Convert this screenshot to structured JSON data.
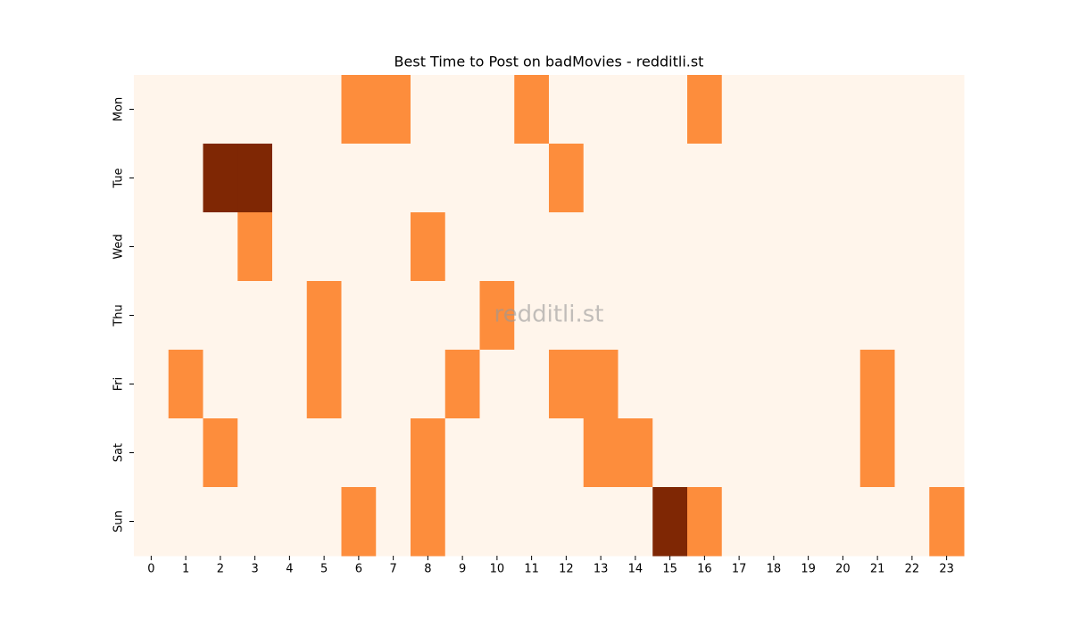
{
  "chart_data": {
    "type": "heatmap",
    "title": "Best Time to Post on badMovies - redditli.st",
    "watermark": "redditli.st",
    "columns": [
      "0",
      "1",
      "2",
      "3",
      "4",
      "5",
      "6",
      "7",
      "8",
      "9",
      "10",
      "11",
      "12",
      "13",
      "14",
      "15",
      "16",
      "17",
      "18",
      "19",
      "20",
      "21",
      "22",
      "23"
    ],
    "rows": [
      "Mon",
      "Tue",
      "Wed",
      "Thu",
      "Fri",
      "Sat",
      "Sun"
    ],
    "values": [
      [
        0,
        0,
        0,
        0,
        0,
        0,
        1,
        1,
        0,
        0,
        0,
        1,
        0,
        0,
        0,
        0,
        1,
        0,
        0,
        0,
        0,
        0,
        0,
        0
      ],
      [
        0,
        0,
        2,
        2,
        0,
        0,
        0,
        0,
        0,
        0,
        0,
        0,
        1,
        0,
        0,
        0,
        0,
        0,
        0,
        0,
        0,
        0,
        0,
        0
      ],
      [
        0,
        0,
        0,
        1,
        0,
        0,
        0,
        0,
        1,
        0,
        0,
        0,
        0,
        0,
        0,
        0,
        0,
        0,
        0,
        0,
        0,
        0,
        0,
        0
      ],
      [
        0,
        0,
        0,
        0,
        0,
        1,
        0,
        0,
        0,
        0,
        1,
        0,
        0,
        0,
        0,
        0,
        0,
        0,
        0,
        0,
        0,
        0,
        0,
        0
      ],
      [
        0,
        1,
        0,
        0,
        0,
        1,
        0,
        0,
        0,
        1,
        0,
        0,
        1,
        1,
        0,
        0,
        0,
        0,
        0,
        0,
        0,
        1,
        0,
        0
      ],
      [
        0,
        0,
        1,
        0,
        0,
        0,
        0,
        0,
        1,
        0,
        0,
        0,
        0,
        1,
        1,
        0,
        0,
        0,
        0,
        0,
        0,
        1,
        0,
        0
      ],
      [
        0,
        0,
        0,
        0,
        0,
        0,
        1,
        0,
        1,
        0,
        0,
        0,
        0,
        0,
        0,
        2,
        1,
        0,
        0,
        0,
        0,
        0,
        0,
        1
      ]
    ],
    "vlim": [
      0,
      2
    ],
    "color_scale": [
      "#fff5eb",
      "#fd8d3c",
      "#7f2704"
    ]
  }
}
